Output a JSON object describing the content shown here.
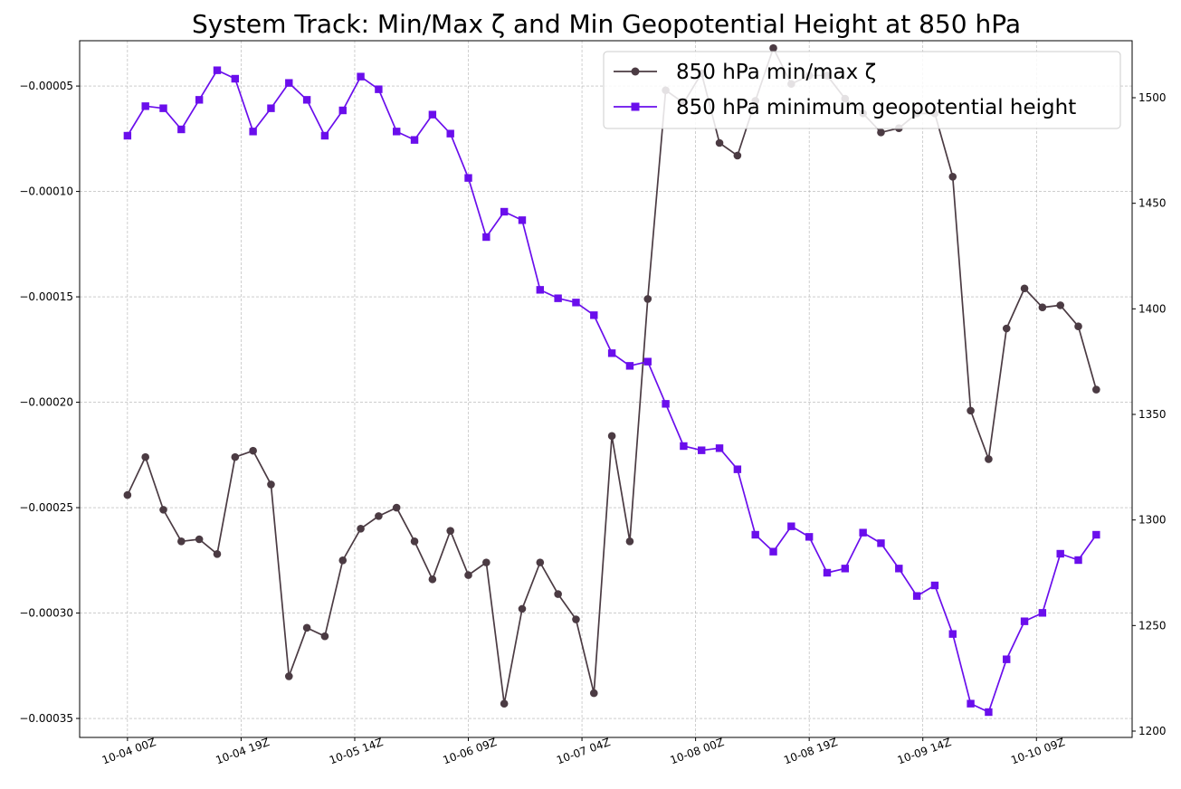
{
  "chart_data": {
    "type": "line",
    "title": "System Track: Min/Max ζ and Min Geopotential Height at 850 hPa",
    "xlabel": "",
    "ylabel_left": "",
    "ylabel_right": "",
    "x_tick_labels": [
      "10-04 00Z",
      "10-04 19Z",
      "10-05 14Z",
      "10-06 09Z",
      "10-07 04Z",
      "10-08 00Z",
      "10-08 19Z",
      "10-09 14Z",
      "10-10 09Z"
    ],
    "x_tick_positions": [
      0,
      19,
      38,
      57,
      76,
      95,
      114,
      133,
      152
    ],
    "x_step": 3,
    "xlim": [
      -8,
      168
    ],
    "ylim_left": [
      -0.000359,
      -2.85e-05
    ],
    "ylim_right": [
      1197,
      1527
    ],
    "y_ticks_left": [
      -0.00035,
      -0.0003,
      -0.00025,
      -0.0002,
      -0.00015,
      -0.0001,
      -5e-05
    ],
    "y_tick_labels_left": [
      "−0.00035",
      "−0.00030",
      "−0.00025",
      "−0.00020",
      "−0.00015",
      "−0.00010",
      "−0.00005"
    ],
    "y_ticks_right": [
      1200,
      1250,
      1300,
      1350,
      1400,
      1450,
      1500
    ],
    "y_tick_labels_right": [
      "1200",
      "1250",
      "1300",
      "1350",
      "1400",
      "1450",
      "1500"
    ],
    "grid": true,
    "legend_position": "top-right",
    "series": [
      {
        "name": "850 hPa min/max ζ",
        "axis": "left",
        "color": "#4b3b43",
        "marker": "circle",
        "values": [
          -0.000244,
          -0.000226,
          -0.000251,
          -0.000266,
          -0.000265,
          -0.000272,
          -0.000226,
          -0.000223,
          -0.000239,
          -0.00033,
          -0.000307,
          -0.000311,
          -0.000275,
          -0.00026,
          -0.000254,
          -0.00025,
          -0.000266,
          -0.000284,
          -0.000261,
          -0.000282,
          -0.000276,
          -0.000343,
          -0.000298,
          -0.000276,
          -0.000291,
          -0.000303,
          -0.000338,
          -0.000216,
          -0.000266,
          -0.000151,
          -5.2e-05,
          -5.8e-05,
          -4.4e-05,
          -7.7e-05,
          -8.3e-05,
          -5.7e-05,
          -3.2e-05,
          -4.9e-05,
          -4.5e-05,
          -4.5e-05,
          -5.6e-05,
          -6.3e-05,
          -7.2e-05,
          -7e-05,
          -6.3e-05,
          -6.3e-05,
          -9.3e-05,
          -0.000204,
          -0.000227,
          -0.000165,
          -0.000146,
          -0.000155,
          -0.000154,
          -0.000164,
          -0.000194
        ]
      },
      {
        "name": "850 hPa minimum geopotential height",
        "axis": "right",
        "color": "#6a0eec",
        "marker": "square",
        "values": [
          1482,
          1496,
          1495,
          1485,
          1499,
          1513,
          1509,
          1484,
          1495,
          1507,
          1499,
          1482,
          1494,
          1510,
          1504,
          1484,
          1480,
          1492,
          1483,
          1462,
          1434,
          1446,
          1442,
          1409,
          1405,
          1403,
          1397,
          1379,
          1373,
          1375,
          1355,
          1335,
          1333,
          1334,
          1324,
          1293,
          1285,
          1297,
          1292,
          1275,
          1277,
          1294,
          1289,
          1277,
          1264,
          1269,
          1246,
          1213,
          1209,
          1234,
          1252,
          1256,
          1284,
          1281,
          1293
        ]
      }
    ]
  }
}
